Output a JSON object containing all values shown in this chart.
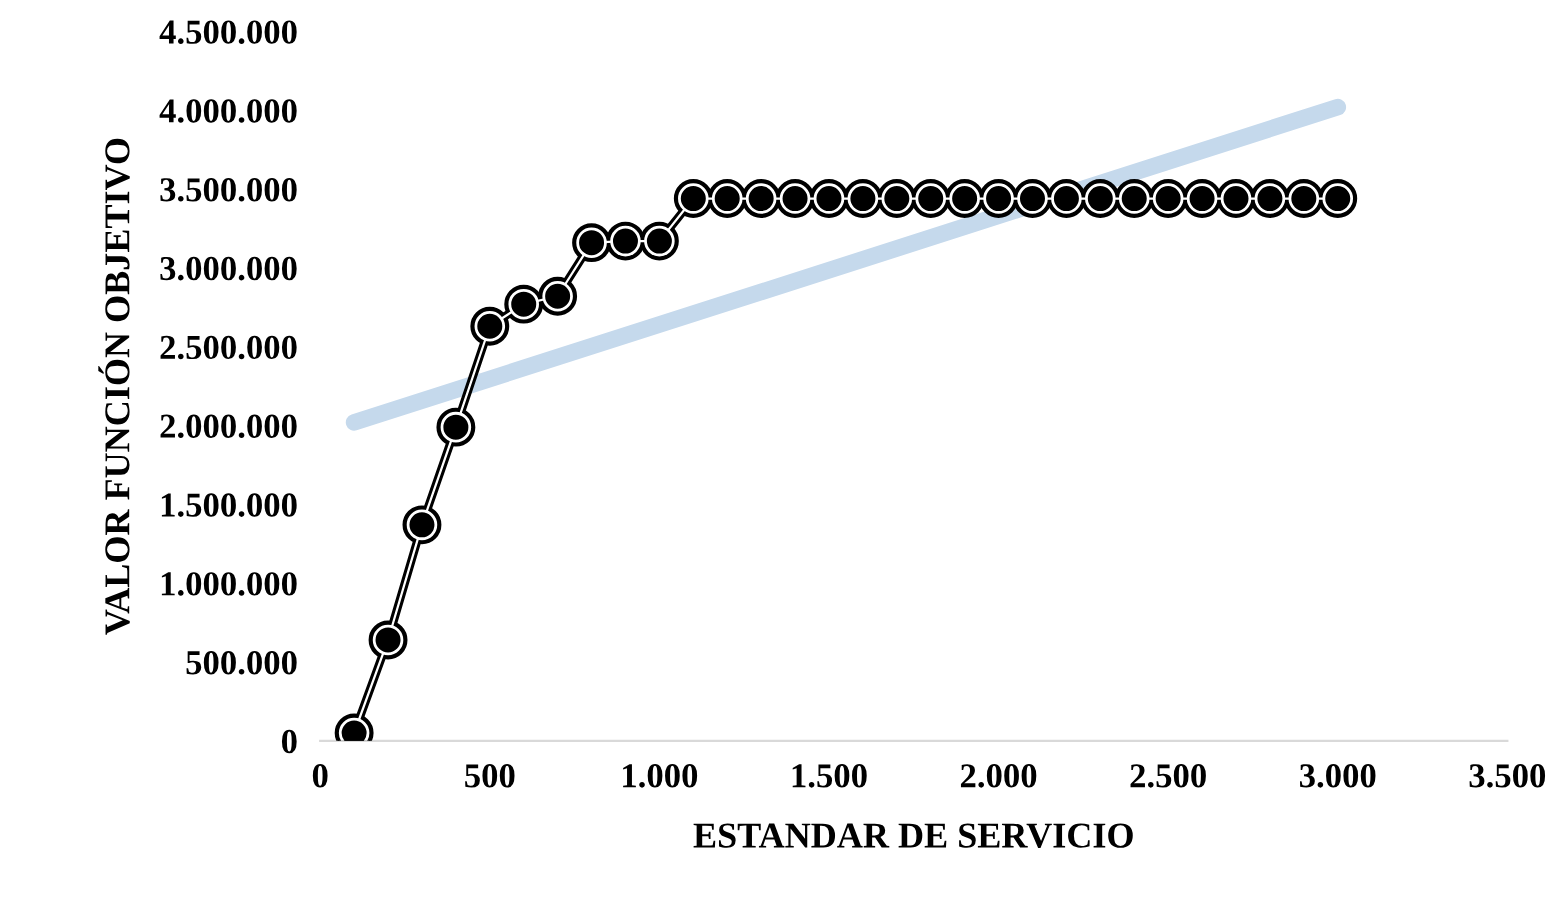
{
  "chart_data": {
    "type": "line",
    "xlabel": "ESTANDAR DE SERVICIO",
    "ylabel": "VALOR FUNCIÓN OBJETIVO",
    "xlim": [
      0,
      3500
    ],
    "xticks": [
      {
        "value": 0,
        "label": "0"
      },
      {
        "value": 500,
        "label": "500"
      },
      {
        "value": 1000,
        "label": "1.000"
      },
      {
        "value": 1500,
        "label": "1.500"
      },
      {
        "value": 2000,
        "label": "2.000"
      },
      {
        "value": 2500,
        "label": "2.500"
      },
      {
        "value": 3000,
        "label": "3.000"
      },
      {
        "value": 3500,
        "label": "3.500"
      }
    ],
    "ylim": [
      0,
      4500000
    ],
    "yticks": [
      {
        "value": 0,
        "label": "0"
      },
      {
        "value": 500000,
        "label": "500.000"
      },
      {
        "value": 1000000,
        "label": "1.000.000"
      },
      {
        "value": 1500000,
        "label": "1.500.000"
      },
      {
        "value": 2000000,
        "label": "2.000.000"
      },
      {
        "value": 2500000,
        "label": "2.500.000"
      },
      {
        "value": 3000000,
        "label": "3.000.000"
      },
      {
        "value": 3500000,
        "label": "3.500.000"
      },
      {
        "value": 4000000,
        "label": "4.000.000"
      },
      {
        "value": 4500000,
        "label": "4.500.000"
      }
    ],
    "grid": false,
    "legend": false,
    "series": [
      {
        "color": "#000000",
        "marker": "circle",
        "x": [
          100,
          200,
          300,
          400,
          500,
          600,
          700,
          800,
          900,
          1000,
          1100,
          1200,
          1300,
          1400,
          1500,
          1600,
          1700,
          1800,
          1900,
          2000,
          2100,
          2200,
          2300,
          2400,
          2500,
          2600,
          2700,
          2800,
          2900,
          3000
        ],
        "values": [
          50000,
          640000,
          1370000,
          1990000,
          2630000,
          2770000,
          2820000,
          3160000,
          3170000,
          3170000,
          3440000,
          3440000,
          3440000,
          3440000,
          3440000,
          3440000,
          3440000,
          3440000,
          3440000,
          3440000,
          3440000,
          3440000,
          3440000,
          3440000,
          3440000,
          3440000,
          3440000,
          3440000,
          3440000,
          3440000
        ]
      },
      {
        "color": "#c5d9ec",
        "marker": "none",
        "x": [
          100,
          3000
        ],
        "values": [
          2020000,
          4020000
        ]
      }
    ]
  }
}
